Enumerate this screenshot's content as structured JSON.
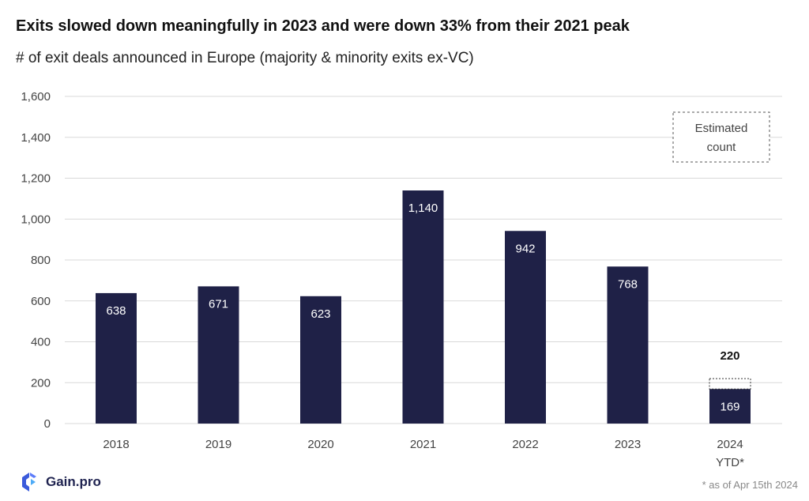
{
  "header": {
    "title": "Exits slowed down meaningfully in 2023 and were down 33% from their 2021 peak",
    "subtitle": "# of exit deals announced in Europe (majority & minority exits ex-VC)"
  },
  "chart_data": {
    "type": "bar",
    "categories": [
      "2018",
      "2019",
      "2020",
      "2021",
      "2022",
      "2023",
      "2024"
    ],
    "category_sublabels": [
      "",
      "",
      "",
      "",
      "",
      "",
      "YTD*"
    ],
    "values": [
      638,
      671,
      623,
      1140,
      942,
      768,
      169
    ],
    "value_labels": [
      "638",
      "671",
      "623",
      "1,140",
      "942",
      "768",
      "169"
    ],
    "estimated": {
      "category": "2024",
      "total": 220,
      "total_label": "220"
    },
    "legend": {
      "label": "Estimated count",
      "lines": [
        "Estimated",
        "count"
      ],
      "placement": "top-right"
    },
    "ylim": [
      0,
      1600
    ],
    "yticks": [
      0,
      200,
      400,
      600,
      800,
      1000,
      1200,
      1400,
      1600
    ],
    "ytick_labels": [
      "0",
      "200",
      "400",
      "600",
      "800",
      "1,000",
      "1,200",
      "1,400",
      "1,600"
    ],
    "grid": true,
    "colors": {
      "bar": "#1f2147",
      "grid": "#d9d9d9",
      "estimate_border": "#333333"
    }
  },
  "footer": {
    "brand": "Gain.pro",
    "footnote": "* as of Apr 15th 2024"
  },
  "icons": {
    "logo": "gain-pro-logo-icon"
  }
}
